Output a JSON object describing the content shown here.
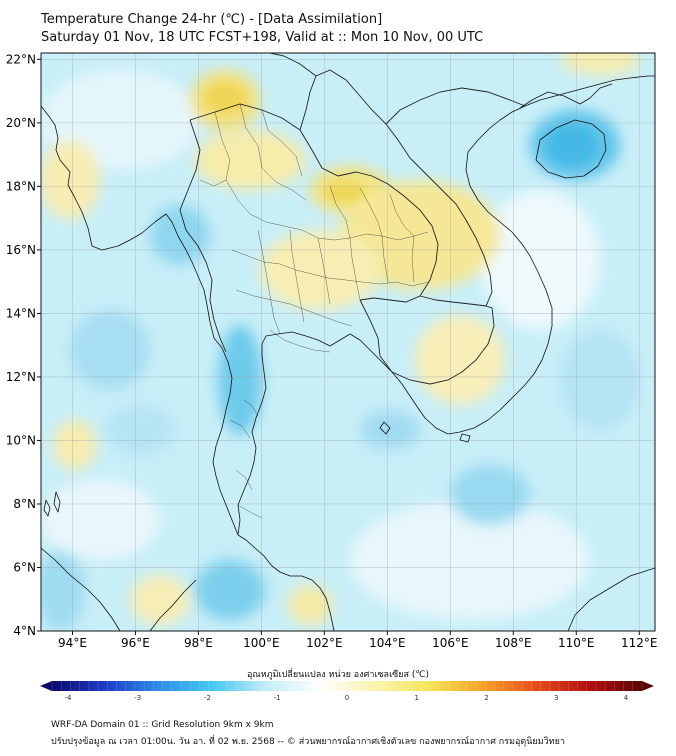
{
  "header": {
    "title": "Temperature Change 24-hr (℃) - [Data Assimilation]",
    "subtitle": "Saturday 01 Nov, 18 UTC FCST+198, Valid at :: Mon 10 Nov, 00 UTC"
  },
  "map": {
    "lat_labels": [
      "22°N",
      "20°N",
      "18°N",
      "16°N",
      "14°N",
      "12°N",
      "10°N",
      "8°N",
      "6°N",
      "4°N"
    ],
    "lon_labels": [
      "94°E",
      "96°E",
      "98°E",
      "100°E",
      "102°E",
      "104°E",
      "106°E",
      "108°E",
      "110°E",
      "112°E"
    ],
    "lat_values": [
      22,
      20,
      18,
      16,
      14,
      12,
      10,
      8,
      6,
      4
    ],
    "lon_values": [
      94,
      96,
      98,
      100,
      102,
      104,
      106,
      108,
      110,
      112
    ],
    "extent": {
      "lon_min": 93,
      "lon_max": 112.5,
      "lat_min": 4,
      "lat_max": 22.2
    },
    "grid": true,
    "field": "24-hr temperature change, mostly between -2 and +1 ℃"
  },
  "colorbar": {
    "label": "อุณหภูมิเปลี่ยนแปลง หน่วย องศาเซลเซียส (℃)",
    "ticks": [
      "-4",
      "-3",
      "-2",
      "-1",
      "0",
      "1",
      "2",
      "3",
      "4"
    ],
    "tick_values": [
      -4,
      -3,
      -2,
      -1,
      0,
      1,
      2,
      3,
      4
    ],
    "min": -4,
    "max": 4,
    "colors": [
      "#0a0a6e",
      "#1e3cc8",
      "#2f8ee8",
      "#45c8f0",
      "#c2ecf7",
      "#ffffff",
      "#fbf3b0",
      "#f5e65a",
      "#f4a428",
      "#e8501a",
      "#b40f0f",
      "#5a0505"
    ]
  },
  "footer": {
    "line1": "WRF-DA Domain 01 :: Grid Resolution 9km x 9km",
    "line2": "ปรับปรุงข้อมูล ณ เวลา 01:00น. วัน อา. ที่ 02 พ.ย. 2568 -- © ส่วนพยากรณ์อากาศเชิงตัวเลข กองพยากรณ์อากาศ กรมอุตุนิยมวิทยา"
  }
}
